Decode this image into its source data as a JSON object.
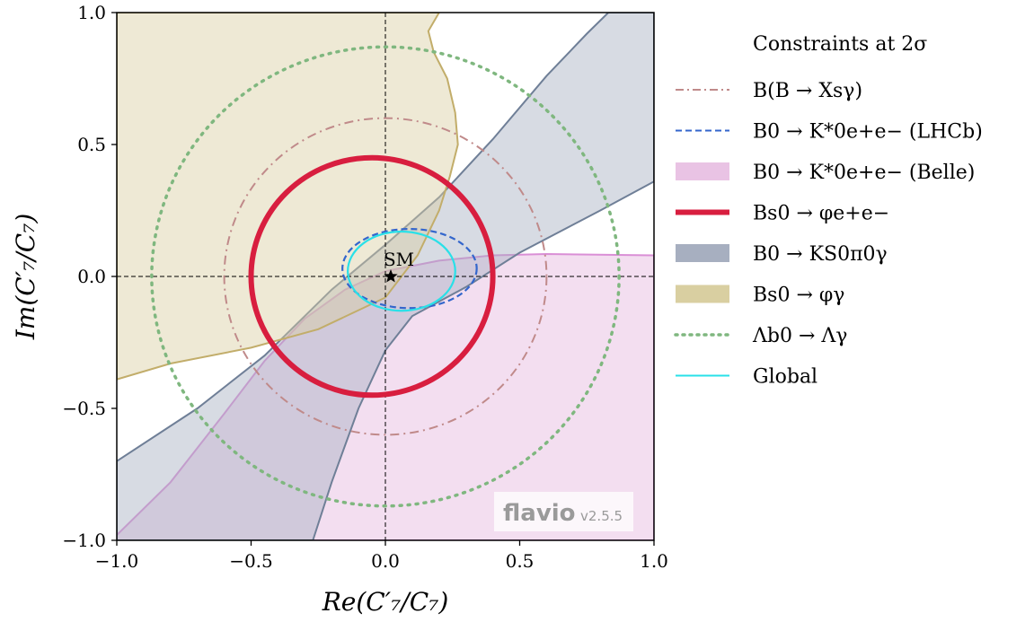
{
  "chart_data": {
    "type": "contour",
    "title": "",
    "xlabel": "Re(C′₇/C₇)",
    "ylabel": "Im(C′₇/C₇)",
    "xlim": [
      -1.0,
      1.0
    ],
    "ylim": [
      -1.0,
      1.0
    ],
    "xticks": [
      "−1.0",
      "−0.5",
      "0.0",
      "0.5",
      "1.0"
    ],
    "yticks": [
      "−1.0",
      "−0.5",
      "0.0",
      "0.5",
      "1.0"
    ],
    "grid": false,
    "legend_title": "Constraints at 2σ",
    "legend_position": "right",
    "series": [
      {
        "name": "B(B → Xsγ)",
        "style": "dashdot",
        "color": "#c08a8a",
        "center": [
          0.0,
          0.0
        ],
        "radius": 0.6
      },
      {
        "name": "B0 → K*0e+e− (LHCb)",
        "style": "dashed",
        "color": "#3366cc",
        "center": [
          0.09,
          0.03
        ],
        "rx": 0.25,
        "ry": 0.15
      },
      {
        "name": "B0 → K*0e+e− (Belle)",
        "style": "filled",
        "color": "#e9c3e4"
      },
      {
        "name": "Bs0 → φe+e−",
        "style": "solid-thick",
        "color": "#d81e3f",
        "center": [
          -0.05,
          0.0
        ],
        "rx": 0.45,
        "ry": 0.45
      },
      {
        "name": "B0 → KS0π0γ",
        "style": "filled",
        "color": "#a7afc0"
      },
      {
        "name": "Bs0 → φγ",
        "style": "filled",
        "color": "#d9cfa1"
      },
      {
        "name": "Λb0 → Λγ",
        "style": "dotted",
        "color": "#7fb77f",
        "center": [
          0.0,
          0.0
        ],
        "radius": 0.87
      },
      {
        "name": "Global",
        "style": "solid",
        "color": "#29e0e8",
        "center": [
          0.06,
          0.02
        ],
        "rx": 0.2,
        "ry": 0.15
      }
    ],
    "points": [
      {
        "label": "SM",
        "x": 0.02,
        "y": 0.0,
        "marker": "star"
      }
    ]
  },
  "watermark": {
    "name": "flavio",
    "version": "v2.5.5"
  }
}
